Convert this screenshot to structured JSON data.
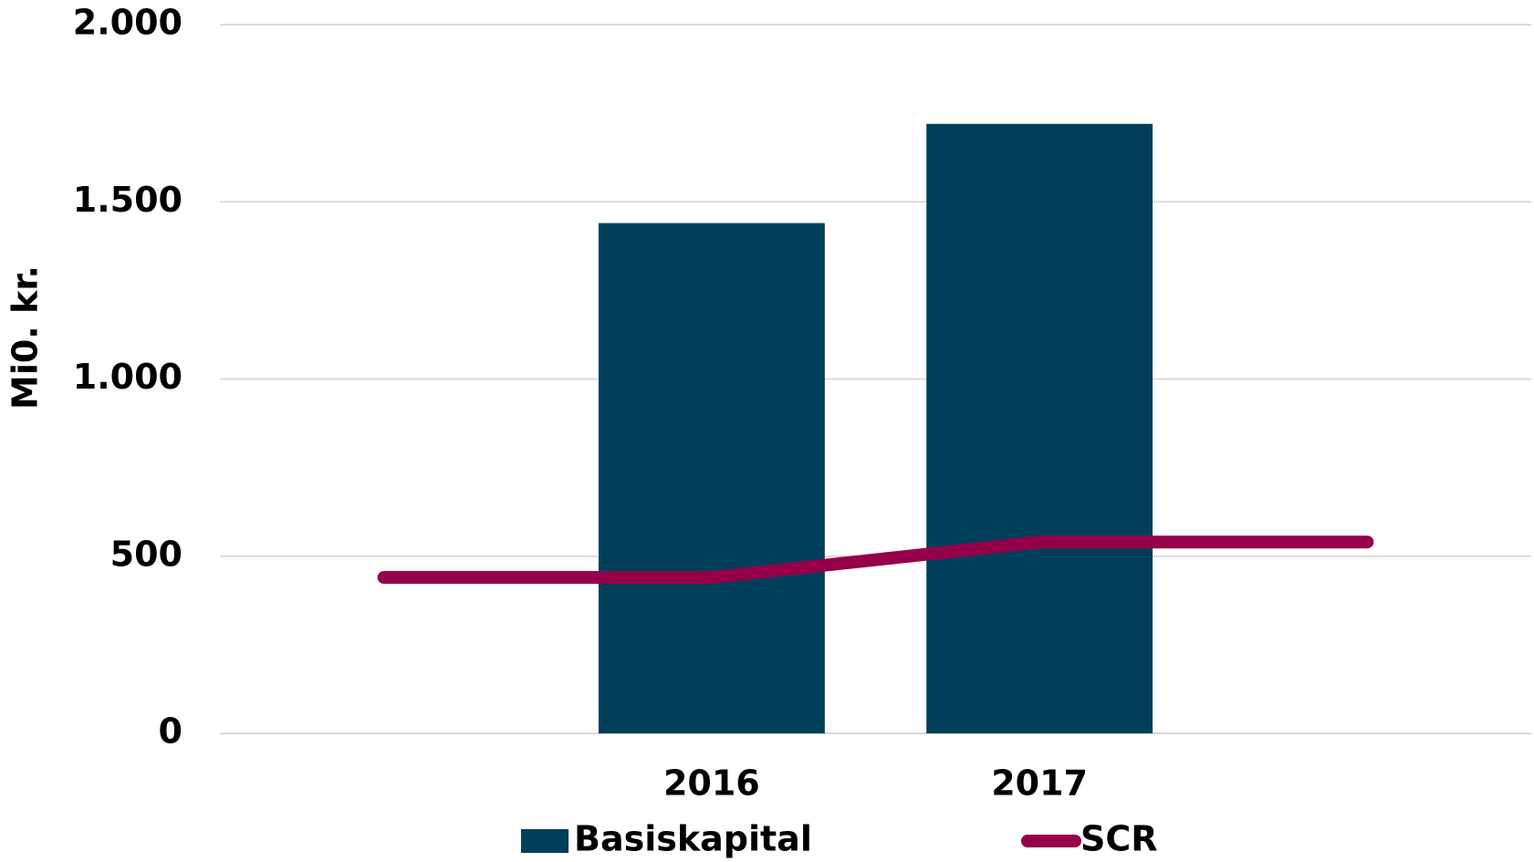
{
  "chart_data": {
    "type": "bar_line",
    "y_label": "Mi0. kr.",
    "categories": [
      null,
      "2016",
      "2017",
      null
    ],
    "series": [
      {
        "name": "Basiskapital",
        "type": "bar",
        "color": "#003f5a",
        "values": [
          null,
          1440,
          1720,
          null
        ]
      },
      {
        "name": "SCR",
        "type": "line",
        "color": "#96004b",
        "values": [
          440,
          440,
          540,
          540
        ]
      }
    ],
    "ylim": [
      0,
      2000
    ],
    "yticks": [
      0,
      500,
      {
        "value": 1000,
        "label": "1.000"
      },
      {
        "value": 1500,
        "label": "1.500"
      },
      {
        "value": 2000,
        "label": "2.000"
      }
    ],
    "grid": true,
    "legend": "bottom"
  }
}
